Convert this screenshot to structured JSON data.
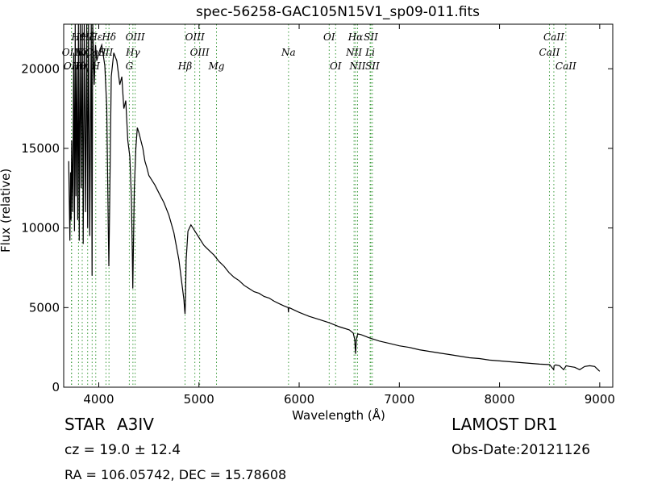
{
  "chart_data": {
    "type": "line",
    "title": "spec-56258-GAC105N15V1_sp09-011.fits",
    "xlabel": "Wavelength (Å)",
    "ylabel": "Flux (relative)",
    "xlim": [
      3650,
      9130
    ],
    "ylim": [
      0,
      22800
    ],
    "xticks": [
      4000,
      5000,
      6000,
      7000,
      8000,
      9000
    ],
    "yticks": [
      0,
      5000,
      10000,
      15000,
      20000
    ],
    "grid": false,
    "series": [
      {
        "x": [
          3700,
          3712,
          3718,
          3724,
          3730,
          3740,
          3750,
          3758,
          3765,
          3772,
          3780,
          3790,
          3797,
          3805,
          3815,
          3825,
          3835,
          3845,
          3855,
          3868,
          3880,
          3889,
          3898,
          3910,
          3925,
          3933,
          3940,
          3955,
          3968,
          3980,
          4000,
          4030,
          4060,
          4080,
          4095,
          4101,
          4108,
          4125,
          4150,
          4180,
          4210,
          4230,
          4250,
          4270,
          4290,
          4310,
          4325,
          4335,
          4340,
          4345,
          4355,
          4370,
          4385,
          4400,
          4420,
          4440,
          4460,
          4480,
          4500,
          4530,
          4560,
          4600,
          4650,
          4700,
          4750,
          4800,
          4830,
          4850,
          4858,
          4861,
          4864,
          4872,
          4890,
          4920,
          4960,
          5000,
          5050,
          5100,
          5150,
          5200,
          5250,
          5300,
          5350,
          5400,
          5450,
          5500,
          5550,
          5600,
          5650,
          5700,
          5750,
          5800,
          5850,
          5890,
          5893,
          5896,
          5900,
          5950,
          6000,
          6100,
          6200,
          6300,
          6400,
          6450,
          6500,
          6540,
          6555,
          6563,
          6571,
          6585,
          6620,
          6700,
          6800,
          6900,
          7000,
          7100,
          7200,
          7300,
          7400,
          7500,
          7600,
          7700,
          7800,
          7900,
          8000,
          8100,
          8200,
          8300,
          8400,
          8500,
          8540,
          8545,
          8560,
          8600,
          8640,
          8665,
          8700,
          8750,
          8800,
          8850,
          8900,
          8950,
          9000
        ],
        "y": [
          14200,
          9200,
          13500,
          10500,
          15500,
          11000,
          21000,
          9800,
          22800,
          12000,
          20000,
          10500,
          22800,
          9200,
          22800,
          12500,
          22800,
          9000,
          22800,
          11000,
          22800,
          10000,
          22800,
          9500,
          22800,
          7000,
          22800,
          19000,
          21500,
          20500,
          21000,
          21500,
          20200,
          17600,
          10000,
          7600,
          11000,
          19500,
          21000,
          20500,
          19000,
          19500,
          17500,
          18000,
          15500,
          14500,
          12000,
          8500,
          6200,
          8500,
          12500,
          15000,
          16300,
          16000,
          15500,
          15000,
          14200,
          13800,
          13300,
          13000,
          12700,
          12200,
          11600,
          10800,
          9700,
          8000,
          6500,
          5500,
          4800,
          4600,
          5200,
          8000,
          9800,
          10200,
          9800,
          9400,
          8900,
          8600,
          8300,
          7900,
          7600,
          7200,
          6900,
          6700,
          6400,
          6200,
          6000,
          5900,
          5700,
          5600,
          5400,
          5250,
          5100,
          5000,
          4700,
          5000,
          5000,
          4850,
          4700,
          4450,
          4250,
          4050,
          3800,
          3700,
          3600,
          3400,
          3000,
          2100,
          3000,
          3350,
          3300,
          3100,
          2900,
          2750,
          2600,
          2500,
          2350,
          2250,
          2150,
          2050,
          1950,
          1850,
          1800,
          1700,
          1650,
          1600,
          1550,
          1500,
          1450,
          1420,
          1100,
          1350,
          1400,
          1350,
          1100,
          1350,
          1300,
          1250,
          1100,
          1300,
          1350,
          1300,
          1000
        ]
      }
    ],
    "lines": [
      {
        "name": "OII",
        "x": 3727
      },
      {
        "name": "OIII",
        "x": 3729
      },
      {
        "name": "Hθ",
        "x": 3798
      },
      {
        "name": "Hη",
        "x": 3835
      },
      {
        "name": "Hζ",
        "x": 3889
      },
      {
        "name": "Hε",
        "x": 3970
      },
      {
        "name": "KCaII",
        "x": 3934
      },
      {
        "name": "SII",
        "x": 4072
      },
      {
        "name": "Hδ",
        "x": 4102
      },
      {
        "name": "G",
        "x": 4305
      },
      {
        "name": "Hγ",
        "x": 4341
      },
      {
        "name": "OIII",
        "x": 4363
      },
      {
        "name": "Hβ",
        "x": 4861
      },
      {
        "name": "OIII",
        "x": 4959
      },
      {
        "name": "OIII",
        "x": 5007
      },
      {
        "name": "Mg",
        "x": 5175
      },
      {
        "name": "Na",
        "x": 5894
      },
      {
        "name": "OI",
        "x": 6300
      },
      {
        "name": "OI",
        "x": 6364
      },
      {
        "name": "NII",
        "x": 6548
      },
      {
        "name": "Hα",
        "x": 6563
      },
      {
        "name": "NII",
        "x": 6583
      },
      {
        "name": "Li",
        "x": 6708
      },
      {
        "name": "SII",
        "x": 6716
      },
      {
        "name": "SII",
        "x": 6731
      },
      {
        "name": "CaII",
        "x": 8498
      },
      {
        "name": "CaII",
        "x": 8542
      },
      {
        "name": "CaII",
        "x": 8662
      }
    ],
    "line_labels": [
      {
        "text": "Hθ",
        "x": 3798,
        "row": 1
      },
      {
        "text": "Hζ",
        "x": 3889,
        "row": 1
      },
      {
        "text": "Hε",
        "x": 3970,
        "row": 1
      },
      {
        "text": "Hδ",
        "x": 4102,
        "row": 1
      },
      {
        "text": "OIII",
        "x": 4363,
        "row": 1
      },
      {
        "text": "OIII",
        "x": 4959,
        "row": 1
      },
      {
        "text": "OI",
        "x": 6300,
        "row": 1
      },
      {
        "text": "Hα",
        "x": 6563,
        "row": 1
      },
      {
        "text": "SII",
        "x": 6716,
        "row": 1
      },
      {
        "text": "CaII",
        "x": 8542,
        "row": 1
      },
      {
        "text": "OIII",
        "x": 3729,
        "row": 2
      },
      {
        "text": "Hη",
        "x": 3835,
        "row": 2
      },
      {
        "text": "KCaII",
        "x": 3934,
        "row": 2
      },
      {
        "text": "SII",
        "x": 4072,
        "row": 2
      },
      {
        "text": "Hγ",
        "x": 4341,
        "row": 2
      },
      {
        "text": "OIII",
        "x": 5007,
        "row": 2
      },
      {
        "text": "Na",
        "x": 5894,
        "row": 2
      },
      {
        "text": "NII",
        "x": 6548,
        "row": 2
      },
      {
        "text": "Li",
        "x": 6708,
        "row": 2
      },
      {
        "text": "CaII",
        "x": 8498,
        "row": 2
      },
      {
        "text": "OII",
        "x": 3727,
        "row": 3
      },
      {
        "text": "Hθ",
        "x": 3798,
        "row": 3
      },
      {
        "text": "Hη",
        "x": 3835,
        "row": 3
      },
      {
        "text": "H",
        "x": 3970,
        "row": 3
      },
      {
        "text": "G",
        "x": 4305,
        "row": 3
      },
      {
        "text": "Hβ",
        "x": 4861,
        "row": 3
      },
      {
        "text": "Mg",
        "x": 5175,
        "row": 3
      },
      {
        "text": "OI",
        "x": 6364,
        "row": 3
      },
      {
        "text": "NII",
        "x": 6583,
        "row": 3
      },
      {
        "text": "SII",
        "x": 6731,
        "row": 3
      },
      {
        "text": "CaII",
        "x": 8662,
        "row": 3
      }
    ],
    "line_color": "#000000",
    "marker_color": "#3a9a3a"
  },
  "info": {
    "object_class": "STAR",
    "subclass": "A3IV",
    "cz": "cz = 19.0  ± 12.4",
    "coords": "RA = 106.05742, DEC = 15.78608",
    "survey": "LAMOST DR1",
    "obs_date": "Obs-Date:20121126"
  }
}
